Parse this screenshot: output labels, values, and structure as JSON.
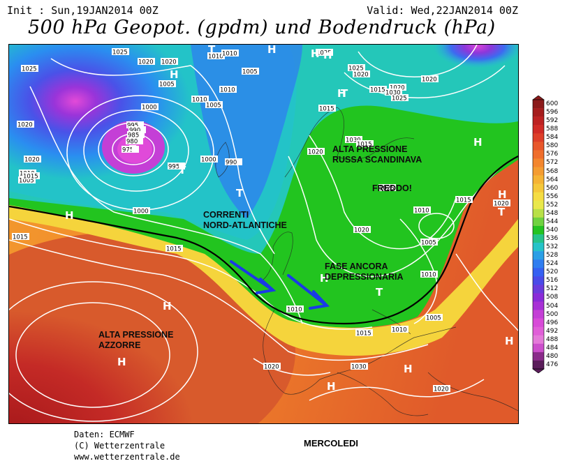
{
  "header": {
    "init": "Init : Sun,19JAN2014 00Z",
    "valid": "Valid: Wed,22JAN2014 00Z",
    "title": "500 hPa Geopot. (gpdm) und Bodendruck (hPa)"
  },
  "colors": {
    "deep_red": "#a11a1a",
    "red": "#d7332a",
    "orange": "#f0912b",
    "yellow": "#f5e04a",
    "green": "#23c321",
    "cyan": "#25c3c8",
    "blue": "#2f5ff1",
    "purple": "#8a2bd8",
    "magenta": "#d63ad6",
    "arrow": "#1a3ae6",
    "front_line": "#000000"
  },
  "colorbar": {
    "labels": [
      "600",
      "596",
      "592",
      "588",
      "584",
      "580",
      "576",
      "572",
      "568",
      "564",
      "560",
      "556",
      "552",
      "548",
      "544",
      "540",
      "536",
      "532",
      "528",
      "524",
      "520",
      "516",
      "512",
      "508",
      "504",
      "500",
      "496",
      "492",
      "488",
      "484",
      "480",
      "476"
    ]
  },
  "map": {
    "annotations": [
      "ALTA PRESSIONE\nRUSSA SCANDINAVA",
      "FREDDO!",
      "CORRENTI\nNORD-ATLANTICHE",
      "FASE ANCORA\nDEPRESSIONARIA",
      "ALTA PRESSIONE\nAZZORRE"
    ],
    "isobar_labels": [
      "1025",
      "1020",
      "1020",
      "1010",
      "1010",
      "1005",
      "1025",
      "1020",
      "1010",
      "1005",
      "1000",
      "995",
      "990",
      "985",
      "980",
      "975",
      "1015",
      "1020",
      "1010",
      "1005",
      "1000",
      "990",
      "995",
      "1000",
      "1015",
      "1015",
      "1005",
      "1010",
      "1015",
      "1020",
      "1025",
      "1030",
      "1025",
      "1020",
      "1015",
      "1020",
      "1025",
      "1020",
      "1015",
      "1030",
      "1025",
      "1010",
      "1020",
      "1005",
      "1010",
      "1005",
      "1010",
      "1015",
      "1020",
      "1030",
      "1020",
      "1010",
      "1015",
      "1020"
    ],
    "pressure_markers": [
      "H",
      "H",
      "T",
      "H",
      "H",
      "T",
      "T",
      "H",
      "H",
      "T",
      "H",
      "T",
      "H",
      "H",
      "H",
      "H",
      "T",
      "H",
      "T",
      "H",
      "H"
    ]
  },
  "footer": {
    "data_source": "Daten: ECMWF",
    "copyright": "(C) Wetterzentrale",
    "website": "www.wetterzentrale.de",
    "day_label": "MERCOLEDI"
  }
}
